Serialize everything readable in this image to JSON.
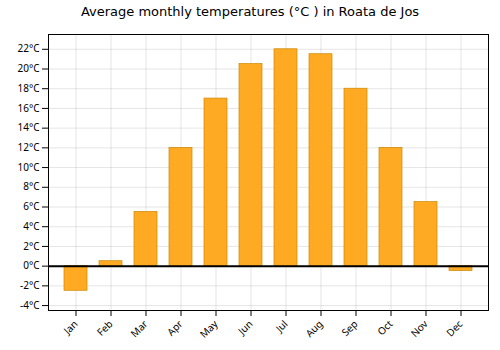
{
  "chart_data": {
    "type": "bar",
    "title": "Average monthly temperatures (°C ) in Roata de Jos",
    "categories": [
      "Jan",
      "Feb",
      "Mar",
      "Apr",
      "May",
      "Jun",
      "Jul",
      "Aug",
      "Sep",
      "Oct",
      "Nov",
      "Dec"
    ],
    "values": [
      -2.5,
      0.5,
      5.5,
      12.0,
      17.0,
      20.5,
      22.0,
      21.5,
      18.0,
      12.0,
      6.5,
      -0.5
    ],
    "color": "#FFAA22",
    "ylim": [
      -4.5,
      23.5
    ],
    "yticks": [
      {
        "value": -4,
        "label": "-4°C"
      },
      {
        "value": -2,
        "label": "-2°C"
      },
      {
        "value": 0,
        "label": "0°C"
      },
      {
        "value": 2,
        "label": "2°C"
      },
      {
        "value": 4,
        "label": "4°C"
      },
      {
        "value": 6,
        "label": "6°C"
      },
      {
        "value": 8,
        "label": "8°C"
      },
      {
        "value": 10,
        "label": "10°C"
      },
      {
        "value": 12,
        "label": "12°C"
      },
      {
        "value": 14,
        "label": "14°C"
      },
      {
        "value": 16,
        "label": "16°C"
      },
      {
        "value": 18,
        "label": "18°C"
      },
      {
        "value": 20,
        "label": "20°C"
      },
      {
        "value": 22,
        "label": "22°C"
      }
    ],
    "grid": true
  }
}
